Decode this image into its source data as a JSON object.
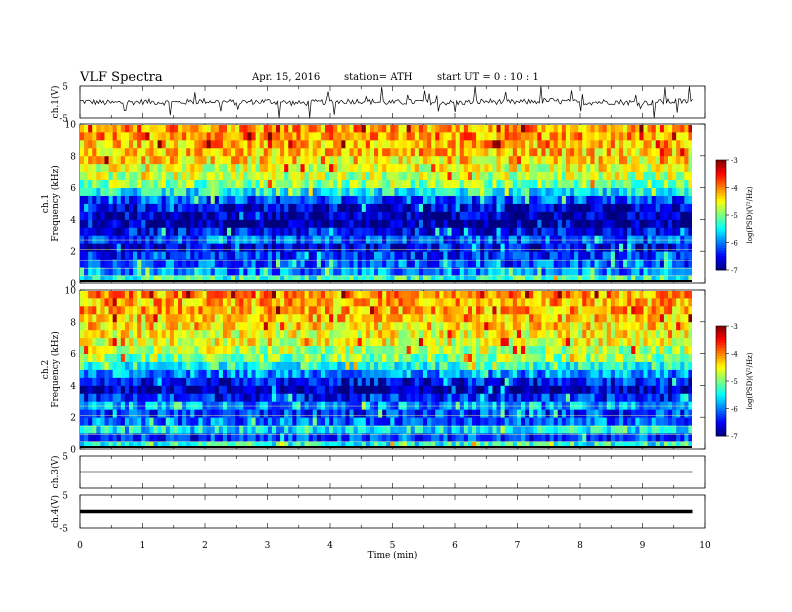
{
  "header": {
    "title": "VLF  Spectra",
    "date": "Apr. 15, 2016",
    "station": "station= ATH",
    "start": "start  UT =   0  : 10 : 1"
  },
  "colors": {
    "scale": [
      "#00007f",
      "#0000ff",
      "#007fff",
      "#00ffff",
      "#7fff7f",
      "#ffff00",
      "#ff7f00",
      "#ff0000",
      "#7f0000"
    ]
  },
  "chart_data": [
    {
      "type": "line",
      "panel": "ch1_waveform",
      "ylabel": "ch.1(V)",
      "ylim": [
        -5,
        5
      ],
      "yticks": [
        "5",
        "-5"
      ],
      "x": [
        0,
        0.5,
        1,
        1.5,
        2,
        2.5,
        3,
        3.5,
        4,
        4.5,
        5,
        5.5,
        6,
        6.5,
        7,
        7.5,
        8,
        8.5,
        9,
        9.5,
        9.8
      ],
      "values": [
        0.2,
        -0.3,
        0.1,
        -0.2,
        0.3,
        -0.1,
        0.2,
        -0.4,
        0.1,
        0.3,
        -0.2,
        0.1,
        -0.3,
        0.2,
        -0.1,
        0.4,
        -0.2,
        0.1,
        -0.3,
        0.2,
        0.1
      ]
    },
    {
      "type": "heatmap",
      "panel": "ch1_spectrogram",
      "ylabel_top": "ch.1",
      "ylabel": "Frequency  (kHz)",
      "ylim": [
        0,
        10
      ],
      "yticks": [
        "0",
        "2",
        "4",
        "6",
        "8",
        "10"
      ],
      "xlim": [
        0,
        9.8
      ],
      "freq_khz": [
        0.25,
        0.75,
        1.25,
        1.75,
        2.25,
        2.75,
        3.25,
        3.75,
        4.25,
        4.75,
        5.25,
        5.75,
        6.25,
        6.75,
        7.25,
        7.75,
        8.25,
        8.75,
        9.25,
        9.75
      ],
      "log_psd": [
        -5.3,
        -6.0,
        -6.2,
        -6.3,
        -6.6,
        -6.2,
        -6.5,
        -6.9,
        -6.8,
        -6.6,
        -6.2,
        -5.5,
        -5.0,
        -4.8,
        -4.6,
        -4.4,
        -4.3,
        -4.2,
        -4.1,
        -4.1
      ],
      "colorbar": {
        "label": "log(PSD)(V²/Hz)",
        "range": [
          -7,
          -3
        ],
        "ticks": [
          "-3",
          "-4",
          "-5",
          "-6",
          "-7"
        ]
      }
    },
    {
      "type": "heatmap",
      "panel": "ch2_spectrogram",
      "ylabel_top": "ch.2",
      "ylabel": "Frequency  (kHz)",
      "ylim": [
        0,
        10
      ],
      "yticks": [
        "0",
        "2",
        "4",
        "6",
        "8",
        "10"
      ],
      "xlim": [
        0,
        9.8
      ],
      "freq_khz": [
        0.25,
        0.75,
        1.25,
        1.75,
        2.25,
        2.75,
        3.25,
        3.75,
        4.25,
        4.75,
        5.25,
        5.75,
        6.25,
        6.75,
        7.25,
        7.75,
        8.25,
        8.75,
        9.25,
        9.75
      ],
      "log_psd": [
        -5.4,
        -6.3,
        -5.6,
        -6.1,
        -6.3,
        -5.9,
        -6.4,
        -6.8,
        -6.5,
        -5.9,
        -5.4,
        -5.0,
        -4.8,
        -4.6,
        -4.5,
        -4.4,
        -4.3,
        -4.2,
        -4.2,
        -4.1
      ],
      "colorbar": {
        "label": "log(PSD)(V²/Hz)",
        "range": [
          -7,
          -3
        ],
        "ticks": [
          "-3",
          "-4",
          "-5",
          "-6",
          "-7"
        ]
      }
    },
    {
      "type": "line",
      "panel": "ch3_waveform",
      "ylabel": "ch.3(V)",
      "ylim": [
        -5,
        5
      ],
      "yticks": [
        "5"
      ],
      "x": [
        0,
        9.8
      ],
      "values": [
        0,
        0
      ]
    },
    {
      "type": "line",
      "panel": "ch4_waveform",
      "ylabel": "ch.4(V)",
      "ylim": [
        -5,
        5
      ],
      "yticks": [
        "5",
        "-5"
      ],
      "x": [
        0,
        9.8
      ],
      "values": [
        0,
        0
      ]
    }
  ],
  "xaxis": {
    "label": "Time  (min)",
    "xlim": [
      0,
      10
    ],
    "ticks": [
      "0",
      "1",
      "2",
      "3",
      "4",
      "5",
      "6",
      "7",
      "8",
      "9",
      "10"
    ]
  }
}
